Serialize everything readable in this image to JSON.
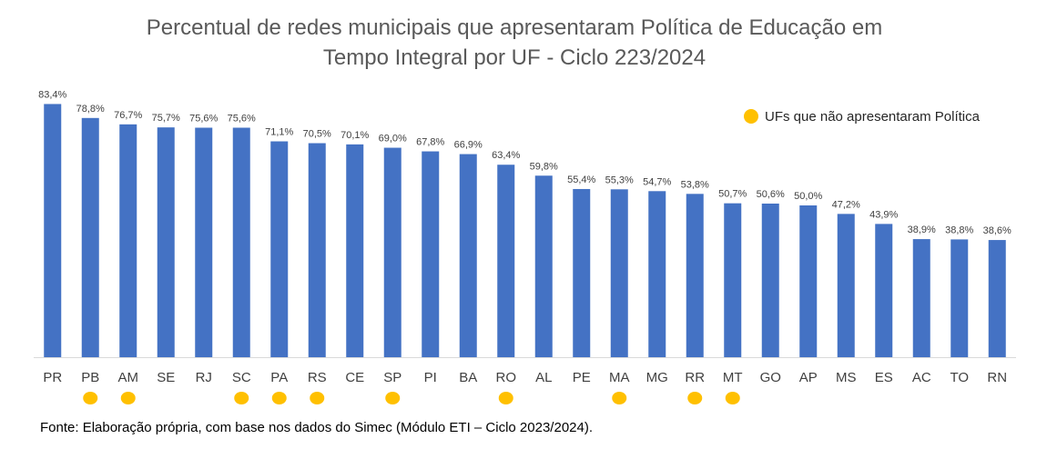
{
  "chart_data": {
    "type": "bar",
    "title_lines": [
      "Percentual de redes municipais que apresentaram Política de Educação em",
      "Tempo Integral por UF - Ciclo 223/2024"
    ],
    "categories": [
      "PR",
      "PB",
      "AM",
      "SE",
      "RJ",
      "SC",
      "PA",
      "RS",
      "CE",
      "SP",
      "PI",
      "BA",
      "RO",
      "AL",
      "PE",
      "MA",
      "MG",
      "RR",
      "MT",
      "GO",
      "AP",
      "MS",
      "ES",
      "AC",
      "TO",
      "RN"
    ],
    "values": [
      83.4,
      78.8,
      76.7,
      75.7,
      75.6,
      75.6,
      71.1,
      70.5,
      70.1,
      69.0,
      67.8,
      66.9,
      63.4,
      59.8,
      55.4,
      55.3,
      54.7,
      53.8,
      50.7,
      50.6,
      50.0,
      47.2,
      43.9,
      38.9,
      38.8,
      38.6
    ],
    "data_labels": [
      "83,4%",
      "78,8%",
      "76,7%",
      "75,7%",
      "75,6%",
      "75,6%",
      "71,1%",
      "70,5%",
      "70,1%",
      "69,0%",
      "67,8%",
      "66,9%",
      "63,4%",
      "59,8%",
      "55,4%",
      "55,3%",
      "54,7%",
      "53,8%",
      "50,7%",
      "50,6%",
      "50,0%",
      "47,2%",
      "43,9%",
      "38,9%",
      "38,8%",
      "38,6%"
    ],
    "marked_categories": [
      "PB",
      "AM",
      "SC",
      "PA",
      "RS",
      "SP",
      "RO",
      "MA",
      "RR",
      "MT"
    ],
    "legend": {
      "label": "UFs que não apresentaram Política",
      "placement": "top-right"
    },
    "ylim": [
      0,
      100
    ],
    "grid": false,
    "bar_color": "#4472C4",
    "marker_color": "#FFC000",
    "axis_color": "#D9D9D9"
  },
  "source_note": "Fonte: Elaboração própria, com base nos dados do Simec (Módulo ETI – Ciclo 2023/2024)."
}
